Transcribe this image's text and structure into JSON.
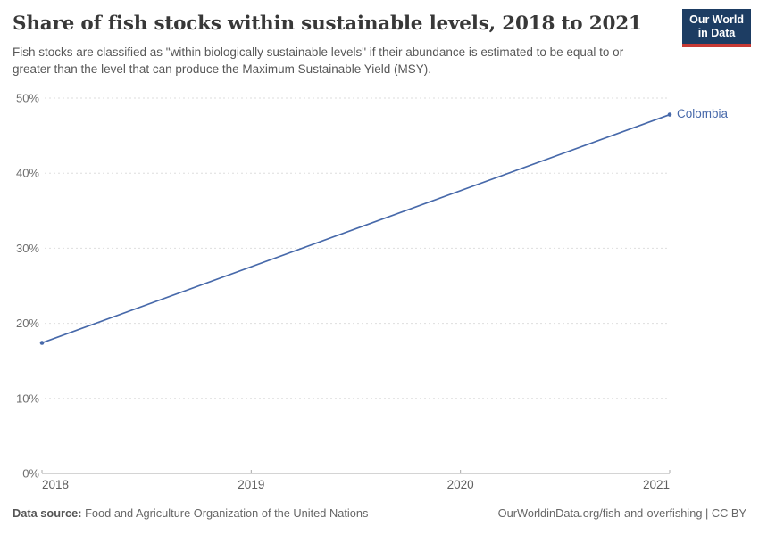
{
  "header": {
    "title": "Share of fish stocks within sustainable levels, 2018 to 2021",
    "subtitle": "Fish stocks are classified as \"within biologically sustainable levels\" if their abundance is estimated to be equal to or greater than the level that can produce the Maximum Sustainable Yield (MSY).",
    "logo": {
      "line1": "Our World",
      "line2": "in Data",
      "bg_color": "#1d3d63",
      "accent_color": "#c73a34"
    }
  },
  "chart_data": {
    "type": "line",
    "title": "Share of fish stocks within sustainable levels, 2018 to 2021",
    "x": [
      2018,
      2021
    ],
    "series": [
      {
        "name": "Colombia",
        "values": [
          17.4,
          47.8
        ],
        "color": "#4769aa"
      }
    ],
    "xticks": [
      2018,
      2019,
      2020,
      2021
    ],
    "yticks": [
      0,
      10,
      20,
      30,
      40,
      50
    ],
    "ytick_suffix": "%",
    "xlim": [
      2018,
      2021
    ],
    "ylim": [
      0,
      50
    ],
    "grid": "horizontal-dashed",
    "legend_position": "end-of-line-label"
  },
  "footer": {
    "source_label": "Data source:",
    "source_text": "Food and Agriculture Organization of the United Nations",
    "right_text": "OurWorldinData.org/fish-and-overfishing | CC BY"
  }
}
